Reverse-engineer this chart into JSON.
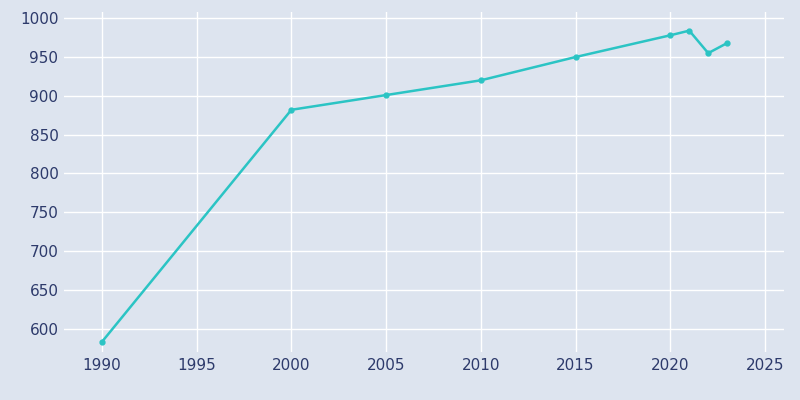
{
  "years": [
    1990,
    2000,
    2005,
    2010,
    2015,
    2020,
    2021,
    2022,
    2023
  ],
  "population": [
    583,
    882,
    901,
    920,
    950,
    978,
    984,
    955,
    968
  ],
  "line_color": "#2bc4c4",
  "background_color": "#dde4ef",
  "grid_color": "#ffffff",
  "tick_label_color": "#2d3a6b",
  "xlim": [
    1988,
    2026
  ],
  "ylim": [
    570,
    1008
  ],
  "xticks": [
    1990,
    1995,
    2000,
    2005,
    2010,
    2015,
    2020,
    2025
  ],
  "yticks": [
    600,
    650,
    700,
    750,
    800,
    850,
    900,
    950,
    1000
  ],
  "linewidth": 1.8,
  "marker": "o",
  "markersize": 3.5
}
